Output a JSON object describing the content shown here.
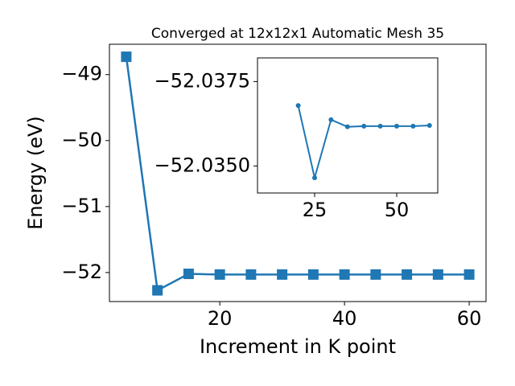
{
  "chart_data": [
    {
      "type": "line",
      "title": "Converged at 12x12x1 Automatic Mesh 35",
      "x_label": "Increment in K point",
      "y_label": "Energy (eV)",
      "x": [
        5,
        10,
        15,
        20,
        25,
        30,
        35,
        40,
        45,
        50,
        55,
        60
      ],
      "series": [
        {
          "name": "Energy",
          "color": "#1f77b4",
          "marker": "square",
          "values": [
            -48.73,
            -52.27,
            -52.02,
            -52.03,
            -52.03,
            -52.03,
            -52.03,
            -52.03,
            -52.03,
            -52.03,
            -52.03,
            -52.03
          ]
        }
      ],
      "xlim": [
        2.3,
        62.7
      ],
      "ylim": [
        -52.44,
        -48.54
      ],
      "xticks": [
        20,
        40,
        60
      ],
      "yticks": [
        {
          "value": -52,
          "label": "−52"
        },
        {
          "value": -51,
          "label": "−51"
        },
        {
          "value": -50,
          "label": "−50"
        },
        {
          "value": -49,
          "label": "−49"
        }
      ]
    },
    {
      "type": "line",
      "x": [
        20,
        25,
        30,
        35,
        40,
        45,
        50,
        55,
        60
      ],
      "series": [
        {
          "name": "Energy",
          "color": "#1f77b4",
          "marker": "circle",
          "values": [
            -52.03679,
            -52.03465,
            -52.03637,
            -52.03616,
            -52.03618,
            -52.03618,
            -52.03618,
            -52.03618,
            -52.0362
          ]
        }
      ],
      "xlim": [
        7.6,
        62.5
      ],
      "ylim": [
        -52.0342,
        -52.0382
      ],
      "xticks": [
        25,
        50
      ],
      "yticks": [
        {
          "value": -52.035,
          "label": "−52.0350"
        },
        {
          "value": -52.0375,
          "label": "−52.0375"
        }
      ]
    }
  ]
}
